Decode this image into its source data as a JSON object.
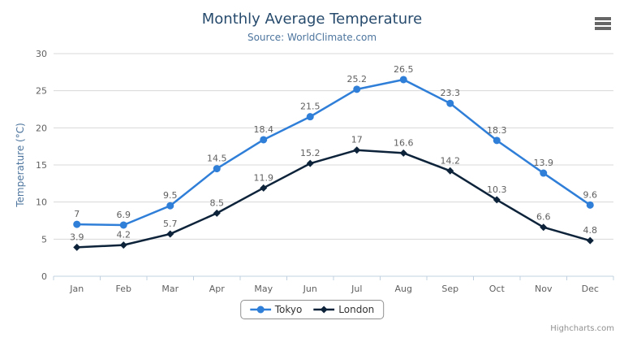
{
  "title": "Monthly Average Temperature",
  "subtitle": "Source: WorldClimate.com",
  "credits": "Highcharts.com",
  "theme": {
    "title_color": "#274b6d",
    "subtitle_color": "#4d759e",
    "axis_title_color": "#4d759e",
    "axis_label_color": "#606060",
    "data_label_color": "#606060",
    "grid_color": "#d8d8d8",
    "axis_line_color": "#c0d0e0",
    "legend_border_color": "#909090",
    "legend_text_color": "#333333",
    "credits_color": "#909090",
    "menu_icon_color": "#666666"
  },
  "chart_data": {
    "type": "line",
    "title": "Monthly Average Temperature",
    "subtitle": "Source: WorldClimate.com",
    "categories": [
      "Jan",
      "Feb",
      "Mar",
      "Apr",
      "May",
      "Jun",
      "Jul",
      "Aug",
      "Sep",
      "Oct",
      "Nov",
      "Dec"
    ],
    "series": [
      {
        "name": "Tokyo",
        "color": "#2f7ed8",
        "marker": "circle",
        "values": [
          7,
          6.9,
          9.5,
          14.5,
          18.4,
          21.5,
          25.2,
          26.5,
          23.3,
          18.3,
          13.9,
          9.6
        ]
      },
      {
        "name": "London",
        "color": "#0d233a",
        "marker": "diamond",
        "values": [
          3.9,
          4.2,
          5.7,
          8.5,
          11.9,
          15.2,
          17,
          16.6,
          14.2,
          10.3,
          6.6,
          4.8
        ]
      }
    ],
    "xlabel": "",
    "ylabel": "Temperature (°C)",
    "ylim": [
      0,
      30
    ],
    "ytick_interval": 5,
    "grid": true,
    "data_labels": true,
    "legend_position": "bottom"
  }
}
